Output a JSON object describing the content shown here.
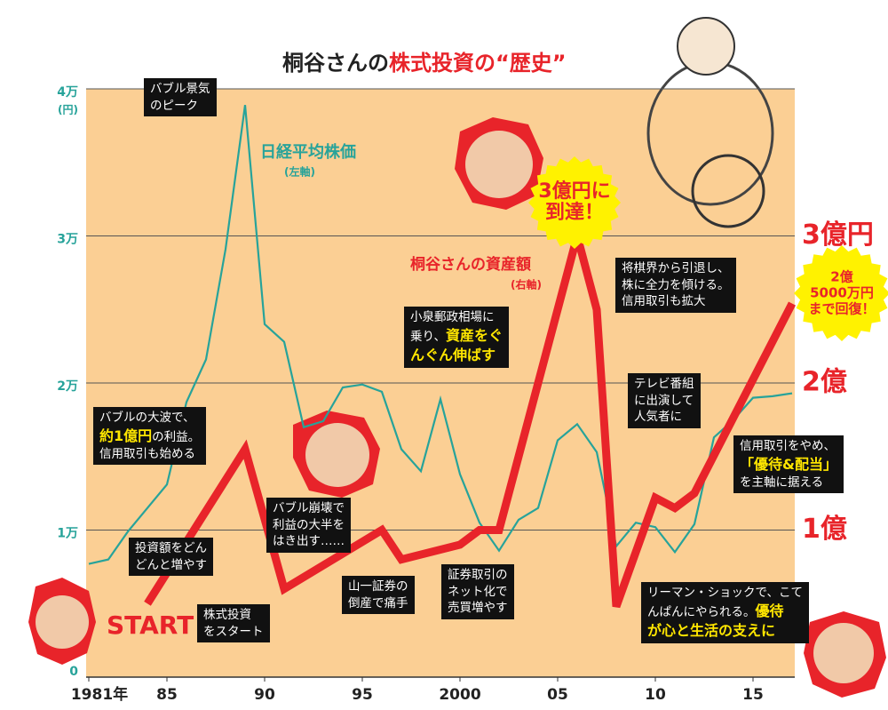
{
  "chart_data": {
    "type": "line",
    "title": {
      "text": "桐谷さんの",
      "highlight": "株式投資の“歴史”"
    },
    "xlim": [
      1981,
      2017
    ],
    "xticks": [
      {
        "value": 1981,
        "label": "1981年"
      },
      {
        "value": 1985,
        "label": "85"
      },
      {
        "value": 1990,
        "label": "90"
      },
      {
        "value": 1995,
        "label": "95"
      },
      2000,
      {
        "value": 2005,
        "label": "05"
      },
      {
        "value": 2010,
        "label": "10"
      },
      {
        "value": 2015,
        "label": "15"
      }
    ],
    "ylim": [
      0,
      40000
    ],
    "yticks": [
      0,
      {
        "value": 10000,
        "label": "1万"
      },
      {
        "value": 20000,
        "label": "2万"
      },
      {
        "value": 30000,
        "label": "3万"
      },
      {
        "value": 40000,
        "label": "4万"
      }
    ],
    "y_unit": "(円)",
    "y2lim": [
      0,
      400000000
    ],
    "y2ticks": [
      {
        "value": 100000000,
        "label": "1億"
      },
      {
        "value": 200000000,
        "label": "2億"
      },
      {
        "value": 300000000,
        "label": "3億円"
      }
    ],
    "grid": true,
    "series": [
      {
        "name": "日経平均株価",
        "note": "(左軸)",
        "color": "#27a39a",
        "x": [
          1981,
          1982,
          1983,
          1984,
          1985,
          1986,
          1987,
          1988,
          1989,
          1990,
          1991,
          1992,
          1993,
          1994,
          1995,
          1996,
          1997,
          1998,
          1999,
          2000,
          2001,
          2002,
          2003,
          2004,
          2005,
          2006,
          2007,
          2008,
          2009,
          2010,
          2011,
          2012,
          2013,
          2014,
          2015,
          2016,
          2017
        ],
        "values": [
          7700,
          8000,
          9900,
          11500,
          13100,
          18700,
          21600,
          29100,
          38900,
          24000,
          22800,
          17000,
          17400,
          19700,
          19900,
          19400,
          15500,
          14000,
          18900,
          13800,
          10500,
          8600,
          10700,
          11500,
          16100,
          17200,
          15300,
          8900,
          10500,
          10200,
          8500,
          10400,
          16300,
          17500,
          19000,
          19100,
          19300
        ]
      },
      {
        "name": "桐谷さんの資産額",
        "note": "(右軸)",
        "color": "#e8242a",
        "axis": "y2",
        "x": [
          1984,
          1989,
          1991,
          1996,
          1997,
          2000,
          2001,
          2002,
          2006,
          2007,
          2008,
          2010,
          2011,
          2012,
          2017
        ],
        "values": [
          50000000,
          155000000,
          60000000,
          100000000,
          80000000,
          90000000,
          100000000,
          100000000,
          300000000,
          250000000,
          48000000,
          122000000,
          115000000,
          125000000,
          254000000
        ]
      }
    ],
    "start_label": "START",
    "callouts": [
      {
        "lines": [
          "3億円に",
          "到達！"
        ]
      },
      {
        "lines": [
          "2億",
          "5000万円",
          "まで回復！"
        ]
      }
    ],
    "annotations": [
      {
        "lines": [
          [
            "バブル景気"
          ],
          [
            "のピーク"
          ]
        ]
      },
      {
        "lines": [
          [
            "バブルの大波で、"
          ],
          [
            {
              "text": "約1億円",
              "color": "#ffe600"
            },
            "の利益。"
          ],
          [
            "信用取引も始める"
          ]
        ]
      },
      {
        "lines": [
          [
            "投資額をどん"
          ],
          [
            "どんと増やす"
          ]
        ]
      },
      {
        "lines": [
          [
            "株式投資"
          ],
          [
            "をスタート"
          ]
        ]
      },
      {
        "lines": [
          [
            "バブル崩壊で"
          ],
          [
            "利益の大半を"
          ],
          [
            "はき出す……"
          ]
        ]
      },
      {
        "lines": [
          [
            "山一証券の"
          ],
          [
            "倒産で痛手"
          ]
        ]
      },
      {
        "lines": [
          [
            "証券取引の"
          ],
          [
            "ネット化で"
          ],
          [
            "売買増やす"
          ]
        ]
      },
      {
        "lines": [
          [
            "小泉郵政相場に"
          ],
          [
            "乗り、",
            {
              "text": "資産をぐ",
              "color": "#ffe600"
            }
          ],
          [
            {
              "text": "んぐん伸ばす",
              "color": "#ffe600"
            }
          ]
        ]
      },
      {
        "lines": [
          [
            "将棋界から引退し、"
          ],
          [
            "株に全力を傾ける。"
          ],
          [
            "信用取引も拡大"
          ]
        ]
      },
      {
        "lines": [
          [
            "テレビ番組"
          ],
          [
            "に出演して"
          ],
          [
            "人気者に"
          ]
        ]
      },
      {
        "lines": [
          [
            "信用取引をやめ、"
          ],
          [
            {
              "text": "「優待&配当」",
              "color": "#ffe600"
            }
          ],
          [
            "を主軸に据える"
          ]
        ]
      },
      {
        "lines": [
          [
            "リーマン・ショックで、こて"
          ],
          [
            "んぱんにやられる。",
            {
              "text": "優待",
              "color": "#ffe600"
            }
          ],
          [
            {
              "text": "が心と生活の支えに",
              "color": "#ffe600"
            }
          ]
        ]
      }
    ]
  }
}
